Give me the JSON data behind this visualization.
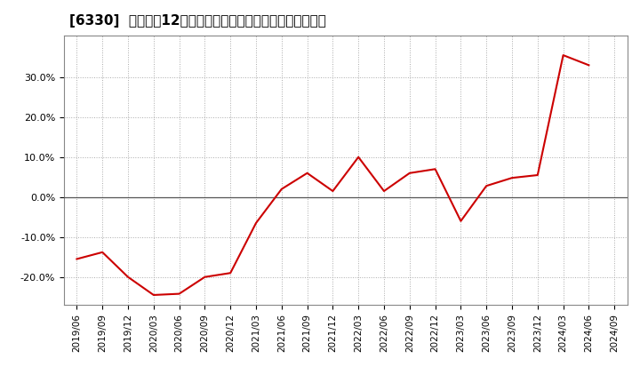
{
  "title": "[6330]  売上高の12か月移動合計の対前年同期増減率の推移",
  "line_color": "#cc0000",
  "background_color": "#ffffff",
  "plot_bg_color": "#ffffff",
  "grid_color": "#aaaaaa",
  "dates": [
    "2019/06",
    "2019/09",
    "2019/12",
    "2020/03",
    "2020/06",
    "2020/09",
    "2020/12",
    "2021/03",
    "2021/06",
    "2021/09",
    "2021/12",
    "2022/03",
    "2022/06",
    "2022/09",
    "2022/12",
    "2023/03",
    "2023/06",
    "2023/09",
    "2023/12",
    "2024/03",
    "2024/06",
    "2024/09"
  ],
  "values": [
    -0.155,
    -0.138,
    -0.2,
    -0.245,
    -0.242,
    -0.2,
    -0.19,
    -0.065,
    0.02,
    0.06,
    0.015,
    0.1,
    0.015,
    0.06,
    0.07,
    -0.06,
    0.028,
    0.048,
    0.055,
    0.355,
    0.33,
    null
  ],
  "yticks": [
    -0.2,
    -0.1,
    0.0,
    0.1,
    0.2,
    0.3
  ],
  "ylim": [
    -0.27,
    0.405
  ],
  "zero_line_color": "#555555",
  "spine_color": "#888888",
  "title_fontsize": 11,
  "tick_fontsize": 8,
  "xtick_fontsize": 7.5
}
